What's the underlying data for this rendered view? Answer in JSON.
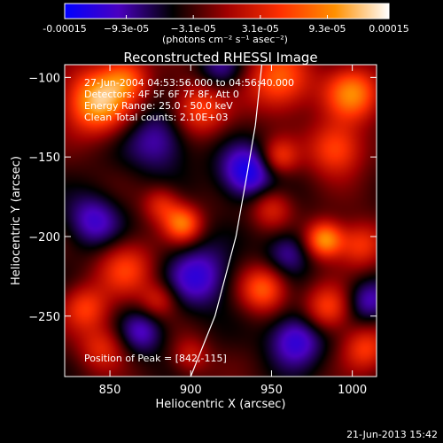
{
  "colorbar": {
    "tick_values": [
      -0.00015,
      -9.3e-05,
      -3.1e-05,
      3.1e-05,
      9.3e-05,
      0.00015
    ],
    "tick_labels": [
      "-0.00015",
      "−9.3e-05",
      "−3.1e-05",
      "3.1e-05",
      "9.3e-05",
      "0.00015"
    ],
    "units": "(photons cm⁻² s⁻¹ asec⁻²)",
    "range": [
      -0.00015,
      0.00015
    ],
    "colormap_stops": [
      "#0000ff",
      "#4a00c0",
      "#000000",
      "#a00000",
      "#ff3000",
      "#ff9000",
      "#ffffff"
    ]
  },
  "chart_data": {
    "type": "heatmap",
    "title": "Reconstructed RHESSI Image",
    "xlabel": "Heliocentric X (arcsec)",
    "ylabel": "Heliocentric Y (arcsec)",
    "xlim": [
      822,
      1015
    ],
    "ylim": [
      -288,
      -92
    ],
    "x_ticks": [
      850,
      900,
      950,
      1000
    ],
    "x_tick_labels": [
      "850",
      "900",
      "950",
      "1000"
    ],
    "y_ticks": [
      -100,
      -150,
      -200,
      -250
    ],
    "y_tick_labels": [
      "−100",
      "−150",
      "−200",
      "−250"
    ],
    "annotations": [
      "27-Jun-2004 04:53:56.000 to 04:56:40.000",
      "Detectors: 4F 5F 6F 7F 8F, Att 0",
      "Energy Range: 25.0 - 50.0 keV",
      "Clean     Total counts: 2.10E+03"
    ],
    "peak_label": "Position of Peak = [842,-115]",
    "peak_position": [
      842,
      -115
    ],
    "limb_curve": [
      [
        900,
        -288
      ],
      [
        915,
        -250
      ],
      [
        928,
        -200
      ],
      [
        935,
        -160
      ],
      [
        940,
        -130
      ],
      [
        944,
        -92
      ]
    ],
    "blobs": [
      {
        "x": 842,
        "y": -115,
        "amp": 1.0,
        "s": 14
      },
      {
        "x": 860,
        "y": -100,
        "amp": 0.55,
        "s": 10
      },
      {
        "x": 905,
        "y": -120,
        "amp": 0.6,
        "s": 12
      },
      {
        "x": 955,
        "y": -102,
        "amp": 0.7,
        "s": 14
      },
      {
        "x": 1000,
        "y": -110,
        "amp": 0.8,
        "s": 12
      },
      {
        "x": 990,
        "y": -145,
        "amp": 0.65,
        "s": 12
      },
      {
        "x": 955,
        "y": -150,
        "amp": 0.5,
        "s": 8
      },
      {
        "x": 895,
        "y": -192,
        "amp": 0.75,
        "s": 8
      },
      {
        "x": 882,
        "y": -180,
        "amp": 0.45,
        "s": 8
      },
      {
        "x": 983,
        "y": -202,
        "amp": 0.9,
        "s": 8
      },
      {
        "x": 1005,
        "y": -205,
        "amp": 0.55,
        "s": 10
      },
      {
        "x": 950,
        "y": -182,
        "amp": 0.45,
        "s": 9
      },
      {
        "x": 945,
        "y": -233,
        "amp": 0.7,
        "s": 10
      },
      {
        "x": 985,
        "y": -245,
        "amp": 0.6,
        "s": 10
      },
      {
        "x": 860,
        "y": -220,
        "amp": 0.55,
        "s": 12
      },
      {
        "x": 835,
        "y": -245,
        "amp": 0.55,
        "s": 10
      },
      {
        "x": 845,
        "y": -270,
        "amp": 0.45,
        "s": 10
      },
      {
        "x": 880,
        "y": -240,
        "amp": 0.4,
        "s": 8
      },
      {
        "x": 1008,
        "y": -270,
        "amp": 0.55,
        "s": 10
      },
      {
        "x": 900,
        "y": -275,
        "amp": 0.35,
        "s": 8
      },
      {
        "x": 935,
        "y": -160,
        "amp": -0.7,
        "s": 12
      },
      {
        "x": 880,
        "y": -140,
        "amp": -0.45,
        "s": 14
      },
      {
        "x": 905,
        "y": -225,
        "amp": -0.55,
        "s": 14
      },
      {
        "x": 960,
        "y": -210,
        "amp": -0.4,
        "s": 10
      },
      {
        "x": 840,
        "y": -190,
        "amp": -0.5,
        "s": 12
      },
      {
        "x": 965,
        "y": -265,
        "amp": -0.6,
        "s": 12
      },
      {
        "x": 1010,
        "y": -240,
        "amp": -0.45,
        "s": 10
      },
      {
        "x": 918,
        "y": -95,
        "amp": -0.35,
        "s": 10
      },
      {
        "x": 870,
        "y": -260,
        "amp": -0.45,
        "s": 10
      }
    ]
  },
  "footer": {
    "date": "21-Jun-2013 15:42"
  }
}
